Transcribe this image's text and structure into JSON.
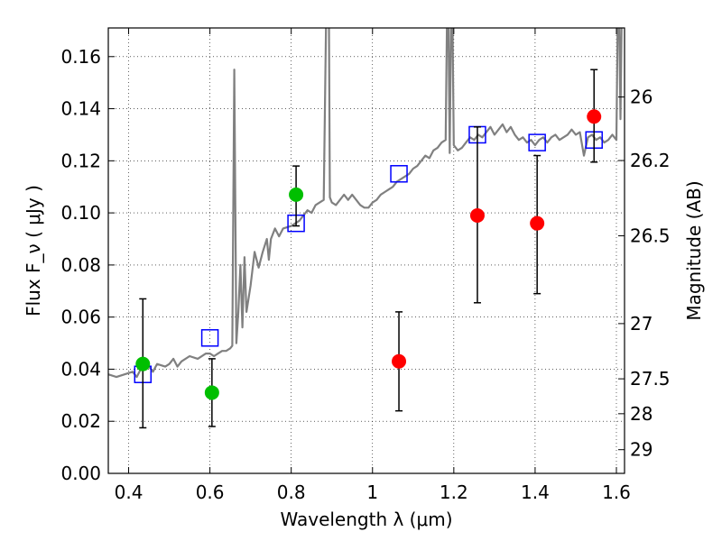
{
  "chart_data": {
    "type": "scatter",
    "xlabel": "Wavelength  λ (μm)",
    "ylabel": "Flux  F_ν  ( μJy )",
    "ylabel_right": "Magnitude (AB)",
    "xlim": [
      0.35,
      1.62
    ],
    "ylim": [
      0.0,
      0.171
    ],
    "grid": true,
    "x_ticks": [
      {
        "value": 0.4,
        "label": "0.4"
      },
      {
        "value": 0.6,
        "label": "0.6"
      },
      {
        "value": 0.8,
        "label": "0.8"
      },
      {
        "value": 1.0,
        "label": "1"
      },
      {
        "value": 1.2,
        "label": "1.2"
      },
      {
        "value": 1.4,
        "label": "1.4"
      },
      {
        "value": 1.6,
        "label": "1.6"
      }
    ],
    "y_ticks": [
      {
        "value": 0.0,
        "label": "0.00"
      },
      {
        "value": 0.02,
        "label": "0.02"
      },
      {
        "value": 0.04,
        "label": "0.04"
      },
      {
        "value": 0.06,
        "label": "0.06"
      },
      {
        "value": 0.08,
        "label": "0.08"
      },
      {
        "value": 0.1,
        "label": "0.10"
      },
      {
        "value": 0.12,
        "label": "0.12"
      },
      {
        "value": 0.14,
        "label": "0.14"
      },
      {
        "value": 0.16,
        "label": "0.16"
      }
    ],
    "right_ticks": [
      {
        "flux": 0.1445,
        "label": "26"
      },
      {
        "flux": 0.1201,
        "label": "26.2"
      },
      {
        "flux": 0.0912,
        "label": "26.5"
      },
      {
        "flux": 0.0575,
        "label": "27"
      },
      {
        "flux": 0.0363,
        "label": "27.5"
      },
      {
        "flux": 0.0229,
        "label": "28"
      },
      {
        "flux": 0.0091,
        "label": "29"
      }
    ],
    "series": [
      {
        "kind": "template-spectrum",
        "color": "#808080",
        "points": [
          [
            0.35,
            0.038
          ],
          [
            0.37,
            0.037
          ],
          [
            0.39,
            0.038
          ],
          [
            0.41,
            0.039
          ],
          [
            0.42,
            0.037
          ],
          [
            0.43,
            0.04
          ],
          [
            0.45,
            0.041
          ],
          [
            0.46,
            0.039
          ],
          [
            0.47,
            0.042
          ],
          [
            0.49,
            0.041
          ],
          [
            0.5,
            0.042
          ],
          [
            0.51,
            0.044
          ],
          [
            0.52,
            0.041
          ],
          [
            0.53,
            0.043
          ],
          [
            0.55,
            0.045
          ],
          [
            0.57,
            0.044
          ],
          [
            0.59,
            0.046
          ],
          [
            0.6,
            0.046
          ],
          [
            0.61,
            0.045
          ],
          [
            0.62,
            0.046
          ],
          [
            0.63,
            0.047
          ],
          [
            0.64,
            0.047
          ],
          [
            0.65,
            0.048
          ],
          [
            0.655,
            0.049
          ],
          [
            0.66,
            0.155
          ],
          [
            0.665,
            0.05
          ],
          [
            0.67,
            0.062
          ],
          [
            0.675,
            0.08
          ],
          [
            0.68,
            0.056
          ],
          [
            0.685,
            0.083
          ],
          [
            0.69,
            0.062
          ],
          [
            0.7,
            0.072
          ],
          [
            0.71,
            0.085
          ],
          [
            0.72,
            0.079
          ],
          [
            0.73,
            0.085
          ],
          [
            0.74,
            0.09
          ],
          [
            0.745,
            0.082
          ],
          [
            0.75,
            0.09
          ],
          [
            0.76,
            0.094
          ],
          [
            0.77,
            0.091
          ],
          [
            0.78,
            0.094
          ],
          [
            0.8,
            0.095
          ],
          [
            0.82,
            0.097
          ],
          [
            0.83,
            0.099
          ],
          [
            0.84,
            0.101
          ],
          [
            0.85,
            0.1
          ],
          [
            0.86,
            0.103
          ],
          [
            0.87,
            0.104
          ],
          [
            0.88,
            0.105
          ],
          [
            0.888,
            0.2
          ],
          [
            0.892,
            0.2
          ],
          [
            0.895,
            0.106
          ],
          [
            0.9,
            0.104
          ],
          [
            0.91,
            0.103
          ],
          [
            0.92,
            0.105
          ],
          [
            0.93,
            0.107
          ],
          [
            0.94,
            0.105
          ],
          [
            0.95,
            0.107
          ],
          [
            0.96,
            0.105
          ],
          [
            0.97,
            0.103
          ],
          [
            0.98,
            0.102
          ],
          [
            0.99,
            0.102
          ],
          [
            1.0,
            0.104
          ],
          [
            1.01,
            0.105
          ],
          [
            1.02,
            0.107
          ],
          [
            1.03,
            0.108
          ],
          [
            1.04,
            0.109
          ],
          [
            1.05,
            0.11
          ],
          [
            1.06,
            0.112
          ],
          [
            1.07,
            0.113
          ],
          [
            1.08,
            0.114
          ],
          [
            1.09,
            0.115
          ],
          [
            1.1,
            0.117
          ],
          [
            1.11,
            0.118
          ],
          [
            1.12,
            0.12
          ],
          [
            1.13,
            0.122
          ],
          [
            1.14,
            0.121
          ],
          [
            1.15,
            0.124
          ],
          [
            1.16,
            0.125
          ],
          [
            1.17,
            0.127
          ],
          [
            1.18,
            0.128
          ],
          [
            1.185,
            0.2
          ],
          [
            1.19,
            0.123
          ],
          [
            1.195,
            0.2
          ],
          [
            1.2,
            0.126
          ],
          [
            1.21,
            0.124
          ],
          [
            1.22,
            0.125
          ],
          [
            1.23,
            0.127
          ],
          [
            1.24,
            0.129
          ],
          [
            1.25,
            0.128
          ],
          [
            1.26,
            0.13
          ],
          [
            1.27,
            0.129
          ],
          [
            1.28,
            0.131
          ],
          [
            1.29,
            0.133
          ],
          [
            1.3,
            0.13
          ],
          [
            1.31,
            0.132
          ],
          [
            1.32,
            0.134
          ],
          [
            1.33,
            0.131
          ],
          [
            1.34,
            0.133
          ],
          [
            1.35,
            0.13
          ],
          [
            1.36,
            0.128
          ],
          [
            1.37,
            0.129
          ],
          [
            1.38,
            0.127
          ],
          [
            1.39,
            0.128
          ],
          [
            1.4,
            0.126
          ],
          [
            1.41,
            0.128
          ],
          [
            1.42,
            0.129
          ],
          [
            1.43,
            0.127
          ],
          [
            1.44,
            0.129
          ],
          [
            1.45,
            0.13
          ],
          [
            1.46,
            0.128
          ],
          [
            1.47,
            0.129
          ],
          [
            1.48,
            0.13
          ],
          [
            1.49,
            0.132
          ],
          [
            1.5,
            0.13
          ],
          [
            1.51,
            0.131
          ],
          [
            1.52,
            0.122
          ],
          [
            1.53,
            0.129
          ],
          [
            1.54,
            0.13
          ],
          [
            1.55,
            0.128
          ],
          [
            1.56,
            0.129
          ],
          [
            1.57,
            0.127
          ],
          [
            1.58,
            0.128
          ],
          [
            1.59,
            0.13
          ],
          [
            1.6,
            0.128
          ],
          [
            1.605,
            0.2
          ],
          [
            1.61,
            0.136
          ],
          [
            1.615,
            0.2
          ],
          [
            1.62,
            0.2
          ]
        ]
      },
      {
        "kind": "model-photometry",
        "marker": "open-square",
        "color": "#0000ff",
        "points": [
          [
            0.435,
            0.038
          ],
          [
            0.6,
            0.052
          ],
          [
            0.812,
            0.096
          ],
          [
            1.065,
            0.115
          ],
          [
            1.258,
            0.13
          ],
          [
            1.405,
            0.127
          ],
          [
            1.545,
            0.128
          ]
        ]
      },
      {
        "kind": "detection",
        "marker": "filled-circle",
        "color": "#00bf00",
        "points": [
          {
            "x": 0.435,
            "y": 0.042,
            "yerr_low": 0.0175,
            "yerr_high": 0.067
          },
          {
            "x": 0.605,
            "y": 0.031,
            "yerr_low": 0.018,
            "yerr_high": 0.044
          },
          {
            "x": 0.812,
            "y": 0.107,
            "yerr_low": 0.095,
            "yerr_high": 0.118
          }
        ]
      },
      {
        "kind": "non-detection",
        "marker": "filled-circle",
        "color": "#ff0000",
        "points": [
          {
            "x": 1.065,
            "y": 0.043,
            "yerr_low": 0.024,
            "yerr_high": 0.062
          },
          {
            "x": 1.258,
            "y": 0.099,
            "yerr_low": 0.0655,
            "yerr_high": 0.133
          },
          {
            "x": 1.405,
            "y": 0.096,
            "yerr_low": 0.069,
            "yerr_high": 0.122
          },
          {
            "x": 1.545,
            "y": 0.137,
            "yerr_low": 0.1195,
            "yerr_high": 0.155
          }
        ]
      }
    ]
  }
}
